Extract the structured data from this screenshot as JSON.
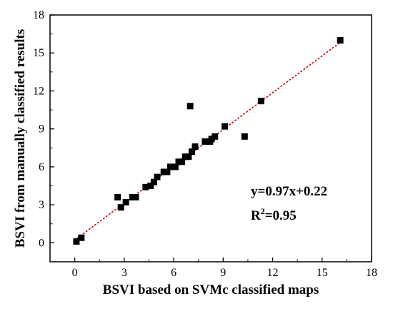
{
  "chart_data": {
    "type": "scatter",
    "xlabel": "BSVI based on SVMc classified maps",
    "ylabel": "BSVI from manually classified results",
    "xlim": [
      -1.5,
      18
    ],
    "ylim": [
      -1.5,
      18
    ],
    "x_ticks": [
      0,
      3,
      6,
      9,
      12,
      15,
      18
    ],
    "y_ticks": [
      0,
      3,
      6,
      9,
      12,
      15,
      18
    ],
    "x_tick_labels": [
      "0",
      "3",
      "6",
      "9",
      "12",
      "15",
      "18"
    ],
    "y_tick_labels": [
      "0",
      "3",
      "6",
      "9",
      "12",
      "15",
      "18"
    ],
    "grid": false,
    "series": [
      {
        "marker": "square",
        "color": "#000000",
        "points": [
          {
            "x": 0.1,
            "y": 0.1
          },
          {
            "x": 0.4,
            "y": 0.4
          },
          {
            "x": 2.6,
            "y": 3.6
          },
          {
            "x": 2.8,
            "y": 2.8
          },
          {
            "x": 3.1,
            "y": 3.2
          },
          {
            "x": 3.5,
            "y": 3.6
          },
          {
            "x": 3.7,
            "y": 3.6
          },
          {
            "x": 4.3,
            "y": 4.4
          },
          {
            "x": 4.6,
            "y": 4.5
          },
          {
            "x": 4.8,
            "y": 4.8
          },
          {
            "x": 5.0,
            "y": 5.2
          },
          {
            "x": 5.4,
            "y": 5.6
          },
          {
            "x": 5.6,
            "y": 5.6
          },
          {
            "x": 5.8,
            "y": 6.0
          },
          {
            "x": 6.1,
            "y": 6.0
          },
          {
            "x": 6.3,
            "y": 6.4
          },
          {
            "x": 6.5,
            "y": 6.4
          },
          {
            "x": 6.7,
            "y": 6.8
          },
          {
            "x": 6.9,
            "y": 6.8
          },
          {
            "x": 7.1,
            "y": 7.2
          },
          {
            "x": 7.3,
            "y": 7.6
          },
          {
            "x": 7.0,
            "y": 10.8
          },
          {
            "x": 7.9,
            "y": 8.0
          },
          {
            "x": 8.2,
            "y": 8.0
          },
          {
            "x": 8.3,
            "y": 8.2
          },
          {
            "x": 8.5,
            "y": 8.4
          },
          {
            "x": 9.1,
            "y": 9.2
          },
          {
            "x": 10.3,
            "y": 8.4
          },
          {
            "x": 11.3,
            "y": 11.2
          },
          {
            "x": 16.1,
            "y": 16.0
          }
        ]
      }
    ],
    "fit_line": {
      "slope": 0.97,
      "intercept": 0.22,
      "x_range": [
        0,
        16
      ],
      "style": "dotted",
      "color": "#cc0000"
    },
    "annotations": {
      "equation": "y=0.97x+0.22",
      "r2_prefix": "R",
      "r2_sup": "2",
      "r2_suffix": "=0.95"
    }
  }
}
